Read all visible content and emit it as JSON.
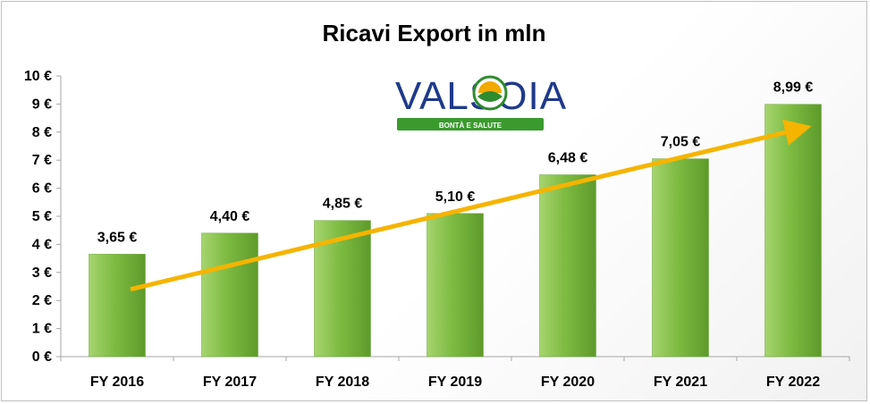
{
  "chart_data": {
    "type": "bar",
    "title": "Ricavi Export in mln",
    "categories": [
      "FY 2016",
      "FY 2017",
      "FY 2018",
      "FY 2019",
      "FY 2020",
      "FY 2021",
      "FY 2022"
    ],
    "values": [
      3.65,
      4.4,
      4.85,
      5.1,
      6.48,
      7.05,
      8.99
    ],
    "data_labels": [
      "3,65 €",
      "4,40 €",
      "4,85 €",
      "5,10 €",
      "6,48 €",
      "7,05 €",
      "8,99 €"
    ],
    "ylim": [
      0,
      10
    ],
    "yticks": [
      0,
      1,
      2,
      3,
      4,
      5,
      6,
      7,
      8,
      9,
      10
    ],
    "ytick_labels": [
      "0 €",
      "1 €",
      "2 €",
      "3 €",
      "4 €",
      "5 €",
      "6 €",
      "7 €",
      "8 €",
      "9 €",
      "10 €"
    ],
    "grid": false,
    "trend_arrow": {
      "from": 2.4,
      "to": 8.1
    },
    "colors": {
      "bar": "#7dbb42",
      "bar_light": "#a6d46e",
      "bar_dark": "#5e9a2a",
      "arrow": "#f5b400",
      "axis": "#a6a6a6"
    }
  },
  "logo": {
    "brand": "VALSOIA",
    "tagline": "BONTÀ E SALUTE",
    "colors": {
      "text": "#1f3a8a",
      "band": "#3a9a2e",
      "sun": "#f2a900",
      "leaf": "#2e8b2e"
    }
  }
}
